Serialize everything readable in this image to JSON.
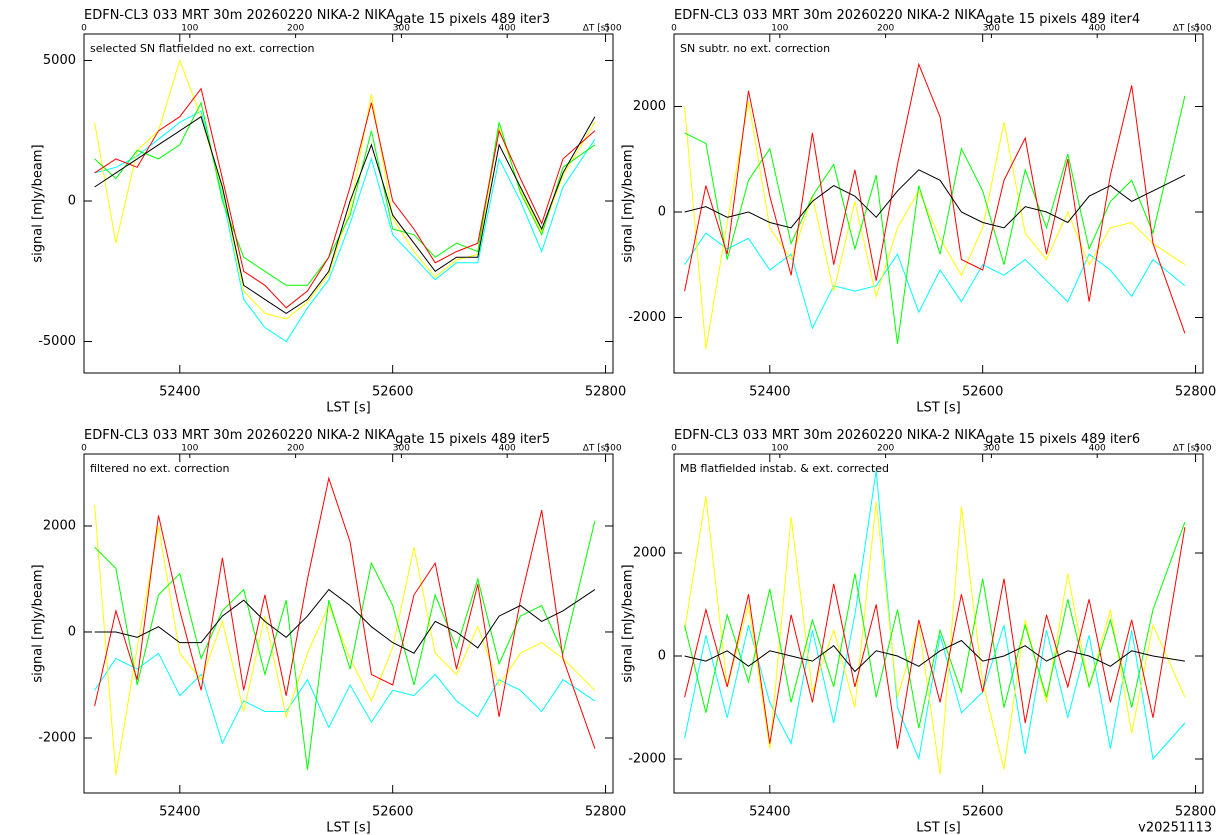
{
  "chart_data": [
    {
      "type": "line",
      "title": "EDFN-CL3 033 MRT 30m  20260220 NIKA-2 NIKA",
      "title_sub": "gate 15 pixels 489 iter3",
      "annotation": "selected SN flatfielded no ext. correction",
      "xlabel": "LST [s]",
      "ylabel": "signal [mJy/beam]",
      "x2label": "ΔT [s]",
      "x2lim": [
        0,
        500
      ],
      "x2ticks": [
        0,
        100,
        200,
        300,
        400,
        500
      ],
      "xlim": [
        52310,
        52807
      ],
      "xticks": [
        52400,
        52600,
        52800
      ],
      "ylim": [
        -6120,
        5943
      ],
      "yticks": [
        -5000,
        0,
        5000
      ],
      "x": [
        52320,
        52340,
        52360,
        52380,
        52400,
        52420,
        52440,
        52460,
        52480,
        52500,
        52520,
        52540,
        52560,
        52580,
        52600,
        52620,
        52640,
        52660,
        52680,
        52700,
        52720,
        52740,
        52760,
        52790
      ],
      "series": [
        {
          "color": "#00ffff",
          "values": [
            1000,
            1200,
            1600,
            2200,
            2800,
            3200,
            200,
            -3500,
            -4500,
            -5000,
            -3800,
            -2800,
            -800,
            1500,
            -1200,
            -2000,
            -2800,
            -2200,
            -2200,
            1500,
            0,
            -1800,
            500,
            2200
          ]
        },
        {
          "color": "#ffff00",
          "values": [
            2800,
            -1500,
            1800,
            2500,
            5000,
            3000,
            400,
            -3200,
            -4000,
            -4200,
            -3600,
            -2600,
            -300,
            3800,
            -600,
            -1800,
            -2700,
            -2100,
            -1900,
            2600,
            400,
            -1100,
            900,
            2800
          ]
        },
        {
          "color": "#00ff00",
          "values": [
            1500,
            800,
            1800,
            1500,
            2000,
            3500,
            0,
            -2000,
            -2500,
            -3000,
            -3000,
            -2000,
            -500,
            2500,
            -1000,
            -1200,
            -2000,
            -1500,
            -1800,
            2800,
            300,
            -1200,
            1200,
            2000
          ]
        },
        {
          "color": "#ff0000",
          "values": [
            1000,
            1500,
            1200,
            2500,
            3000,
            4000,
            800,
            -2500,
            -3000,
            -3800,
            -3200,
            -2000,
            500,
            3500,
            0,
            -1000,
            -2200,
            -1800,
            -1500,
            2500,
            800,
            -800,
            1500,
            2500
          ]
        },
        {
          "color": "#000000",
          "values": [
            500,
            1000,
            1500,
            2000,
            2500,
            3000,
            500,
            -3000,
            -3500,
            -4000,
            -3500,
            -2500,
            0,
            2000,
            -500,
            -1500,
            -2500,
            -2000,
            -2000,
            2000,
            500,
            -1000,
            1000,
            3000
          ]
        }
      ]
    },
    {
      "type": "line",
      "title": "EDFN-CL3 033 MRT 30m  20260220 NIKA-2 NIKA",
      "title_sub": "gate 15 pixels 489 iter4",
      "annotation": "SN subtr. no ext. correction",
      "xlabel": "LST [s]",
      "ylabel": "signal [mJy/beam]",
      "x2label": "ΔT [s]",
      "x2lim": [
        0,
        500
      ],
      "x2ticks": [
        0,
        100,
        200,
        300,
        400,
        500
      ],
      "xlim": [
        52310,
        52807
      ],
      "xticks": [
        52400,
        52600,
        52800
      ],
      "ylim": [
        -3052,
        3374
      ],
      "yticks": [
        -2000,
        0,
        2000
      ],
      "x": [
        52320,
        52340,
        52360,
        52380,
        52400,
        52420,
        52440,
        52460,
        52480,
        52500,
        52520,
        52540,
        52560,
        52580,
        52600,
        52620,
        52640,
        52660,
        52680,
        52700,
        52720,
        52740,
        52760,
        52790
      ],
      "series": [
        {
          "color": "#00ffff",
          "values": [
            -1000,
            -400,
            -700,
            -500,
            -1100,
            -800,
            -2200,
            -1400,
            -1500,
            -1400,
            -800,
            -1900,
            -1100,
            -1700,
            -1000,
            -1200,
            -900,
            -1300,
            -1700,
            -800,
            -1100,
            -1600,
            -900,
            -1400
          ]
        },
        {
          "color": "#ffff00",
          "values": [
            2000,
            -2600,
            -200,
            2100,
            -300,
            -900,
            300,
            -1500,
            200,
            -1600,
            -300,
            400,
            -500,
            -1200,
            -300,
            1700,
            -400,
            -900,
            0,
            -1000,
            -300,
            -200,
            -600,
            -1000
          ]
        },
        {
          "color": "#00ff00",
          "values": [
            1500,
            1300,
            -900,
            600,
            1200,
            -600,
            300,
            900,
            -700,
            700,
            -2500,
            500,
            -800,
            1200,
            400,
            -1000,
            800,
            -300,
            1100,
            -700,
            200,
            600,
            -400,
            2200
          ]
        },
        {
          "color": "#ff0000",
          "values": [
            -1500,
            500,
            -800,
            2300,
            300,
            -1200,
            1500,
            -1000,
            800,
            -1300,
            900,
            2800,
            1800,
            -900,
            -1100,
            600,
            1400,
            -800,
            1000,
            -1700,
            700,
            2400,
            -600,
            -2300
          ]
        },
        {
          "color": "#000000",
          "values": [
            0,
            100,
            -100,
            0,
            -200,
            -300,
            200,
            500,
            300,
            -100,
            400,
            800,
            600,
            0,
            -200,
            -300,
            100,
            0,
            -200,
            300,
            500,
            200,
            400,
            700
          ]
        }
      ]
    },
    {
      "type": "line",
      "title": "EDFN-CL3 033 MRT 30m  20260220 NIKA-2 NIKA",
      "title_sub": "gate 15 pixels 489 iter5",
      "annotation": "filtered no ext. correction",
      "xlabel": "LST [s]",
      "ylabel": "signal [mJy/beam]",
      "x2label": "ΔT [s]",
      "x2lim": [
        0,
        500
      ],
      "x2ticks": [
        0,
        100,
        200,
        300,
        400,
        500
      ],
      "xlim": [
        52310,
        52807
      ],
      "xticks": [
        52400,
        52600,
        52800
      ],
      "ylim": [
        -3038,
        3358
      ],
      "yticks": [
        -2000,
        0,
        2000
      ],
      "x": [
        52320,
        52340,
        52360,
        52380,
        52400,
        52420,
        52440,
        52460,
        52480,
        52500,
        52520,
        52540,
        52560,
        52580,
        52600,
        52620,
        52640,
        52660,
        52680,
        52700,
        52720,
        52740,
        52760,
        52790
      ],
      "series": [
        {
          "color": "#00ffff",
          "values": [
            -1100,
            -500,
            -700,
            -400,
            -1200,
            -800,
            -2100,
            -1300,
            -1500,
            -1500,
            -900,
            -1800,
            -1000,
            -1700,
            -1100,
            -1200,
            -800,
            -1300,
            -1600,
            -900,
            -1100,
            -1500,
            -900,
            -1300
          ]
        },
        {
          "color": "#ffff00",
          "values": [
            2400,
            -2700,
            -300,
            2000,
            -400,
            -900,
            200,
            -1500,
            300,
            -1600,
            -400,
            500,
            -500,
            -1300,
            -300,
            1600,
            -400,
            -800,
            100,
            -1000,
            -400,
            -200,
            -500,
            -1100
          ]
        },
        {
          "color": "#00ff00",
          "values": [
            1600,
            1200,
            -1000,
            700,
            1100,
            -500,
            400,
            800,
            -800,
            600,
            -2600,
            600,
            -700,
            1300,
            500,
            -1000,
            700,
            -300,
            1000,
            -600,
            300,
            500,
            -400,
            2100
          ]
        },
        {
          "color": "#ff0000",
          "values": [
            -1400,
            400,
            -900,
            2200,
            400,
            -1100,
            1400,
            -1100,
            700,
            -1200,
            1000,
            2900,
            1700,
            -800,
            -1000,
            700,
            1300,
            -700,
            900,
            -1600,
            600,
            2300,
            -500,
            -2200
          ]
        },
        {
          "color": "#000000",
          "values": [
            0,
            0,
            -100,
            100,
            -200,
            -200,
            300,
            600,
            200,
            -100,
            300,
            800,
            500,
            100,
            -200,
            -400,
            200,
            0,
            -300,
            300,
            500,
            200,
            400,
            800
          ]
        }
      ]
    },
    {
      "type": "line",
      "title": "EDFN-CL3 033 MRT 30m  20260220 NIKA-2 NIKA",
      "title_sub": "gate 15 pixels 489 iter6",
      "annotation": "MB flatfielded instab. & ext. corrected",
      "xlabel": "LST [s]",
      "ylabel": "signal [mJy/beam]",
      "x2label": "ΔT [s]",
      "x2lim": [
        0,
        500
      ],
      "x2ticks": [
        0,
        100,
        200,
        300,
        400,
        500
      ],
      "xlim": [
        52310,
        52807
      ],
      "xticks": [
        52400,
        52600,
        52800
      ],
      "ylim": [
        -2660,
        3922
      ],
      "yticks": [
        -2000,
        0,
        2000
      ],
      "x": [
        52320,
        52340,
        52360,
        52380,
        52400,
        52420,
        52440,
        52460,
        52480,
        52500,
        52520,
        52540,
        52560,
        52580,
        52600,
        52620,
        52640,
        52660,
        52680,
        52700,
        52720,
        52740,
        52760,
        52790
      ],
      "series": [
        {
          "color": "#00ffff",
          "values": [
            -1600,
            400,
            -1200,
            600,
            -900,
            -1700,
            500,
            -1300,
            800,
            3600,
            -1000,
            -2000,
            400,
            -1100,
            -700,
            600,
            -1900,
            500,
            -1200,
            400,
            -1800,
            500,
            -2000,
            -1300
          ]
        },
        {
          "color": "#ffff00",
          "values": [
            500,
            3100,
            -600,
            1000,
            -1800,
            2700,
            -700,
            500,
            -1000,
            3000,
            -800,
            600,
            -2300,
            2900,
            -500,
            -2200,
            700,
            -900,
            1600,
            -600,
            900,
            -1500,
            600,
            -800
          ]
        },
        {
          "color": "#00ff00",
          "values": [
            600,
            -1100,
            800,
            -500,
            1300,
            -900,
            700,
            -600,
            1600,
            -800,
            900,
            -1400,
            500,
            -700,
            1500,
            -1000,
            600,
            -800,
            1100,
            -600,
            700,
            -1000,
            900,
            2600
          ]
        },
        {
          "color": "#ff0000",
          "values": [
            -800,
            900,
            -600,
            1200,
            -1700,
            800,
            -900,
            1400,
            -600,
            1000,
            -1800,
            700,
            -900,
            1200,
            -700,
            1500,
            -1300,
            800,
            -600,
            1100,
            -900,
            700,
            -1200,
            2500
          ]
        },
        {
          "color": "#000000",
          "values": [
            0,
            -100,
            100,
            -200,
            100,
            0,
            -100,
            200,
            -300,
            100,
            0,
            -200,
            100,
            300,
            -100,
            0,
            200,
            -100,
            100,
            0,
            -200,
            100,
            0,
            -100
          ]
        }
      ]
    }
  ],
  "footer": "v20251113"
}
